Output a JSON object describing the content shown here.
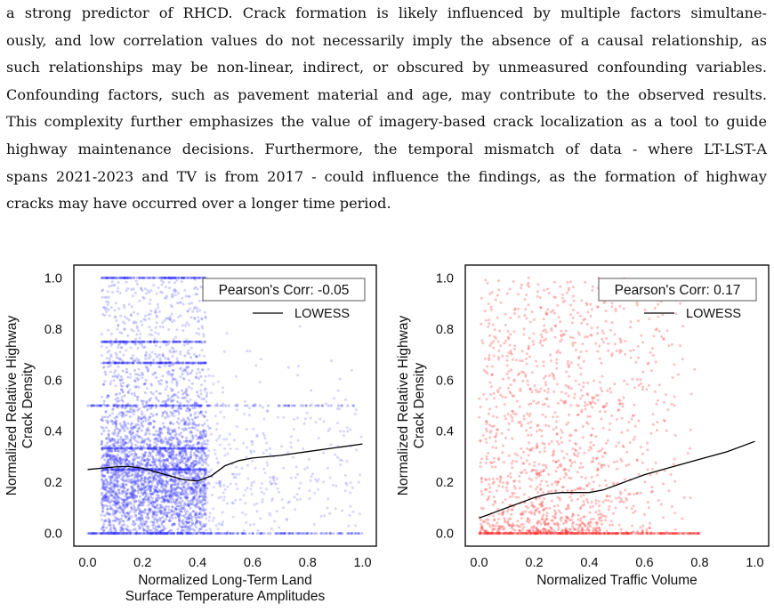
{
  "paragraph": {
    "lines": [
      "a strong predictor of RHCD. Crack formation is likely influenced by multiple factors simultane-",
      "ously, and low correlation values do not necessarily imply the absence of a causal relationship, as",
      "such relationships may be non-linear, indirect, or obscured by unmeasured confounding variables.",
      "Confounding factors, such as pavement material and age, may contribute to the observed results.",
      "This complexity further emphasizes the value of imagery-based crack localization as a tool to guide",
      "highway maintenance decisions. Furthermore, the temporal mismatch of data - where LT-LST-A",
      "spans 2021-2023 and TV is from 2017 - could influence the findings, as the formation of highway",
      "cracks may have occurred over a longer time period."
    ]
  },
  "chart_data": [
    {
      "type": "scatter",
      "xlabel": [
        "Normalized Long-Term Land",
        "Surface  Temperature Amplitudes"
      ],
      "ylabel": [
        "Normalized Relative Highway",
        "Crack Density"
      ],
      "xlim": [
        -0.05,
        1.05
      ],
      "ylim": [
        -0.05,
        1.05
      ],
      "xticks": [
        "0.0",
        "0.2",
        "0.4",
        "0.6",
        "0.8",
        "1.0"
      ],
      "yticks": [
        "0.0",
        "0.2",
        "0.4",
        "0.6",
        "0.8",
        "1.0"
      ],
      "point_color": "#3333ff",
      "annotation": "Pearson's Corr: -0.05",
      "legend": {
        "label": "LOWESS",
        "placement": "top-right"
      },
      "lowess": {
        "x": [
          0.0,
          0.05,
          0.1,
          0.15,
          0.2,
          0.25,
          0.3,
          0.35,
          0.4,
          0.45,
          0.5,
          0.55,
          0.6,
          0.7,
          0.8,
          0.9,
          1.0
        ],
        "y": [
          0.25,
          0.255,
          0.26,
          0.262,
          0.255,
          0.24,
          0.225,
          0.21,
          0.205,
          0.225,
          0.265,
          0.285,
          0.295,
          0.305,
          0.32,
          0.335,
          0.35
        ]
      }
    },
    {
      "type": "scatter",
      "xlabel": [
        "Normalized Traffic Volume"
      ],
      "ylabel": [
        "Normalized Relative Highway",
        "Crack Density"
      ],
      "xlim": [
        -0.05,
        1.05
      ],
      "ylim": [
        -0.05,
        1.05
      ],
      "xticks": [
        "0.0",
        "0.2",
        "0.4",
        "0.6",
        "0.8",
        "1.0"
      ],
      "yticks": [
        "0.0",
        "0.2",
        "0.4",
        "0.6",
        "0.8",
        "1.0"
      ],
      "point_color": "#ff3333",
      "annotation": "Pearson's Corr: 0.17",
      "legend": {
        "label": "LOWESS",
        "placement": "top-right"
      },
      "lowess": {
        "x": [
          0.0,
          0.05,
          0.1,
          0.15,
          0.2,
          0.25,
          0.3,
          0.35,
          0.4,
          0.45,
          0.5,
          0.55,
          0.6,
          0.7,
          0.8,
          0.9,
          1.0
        ],
        "y": [
          0.06,
          0.08,
          0.1,
          0.12,
          0.14,
          0.155,
          0.16,
          0.16,
          0.16,
          0.17,
          0.19,
          0.21,
          0.23,
          0.26,
          0.29,
          0.32,
          0.36
        ]
      }
    }
  ]
}
